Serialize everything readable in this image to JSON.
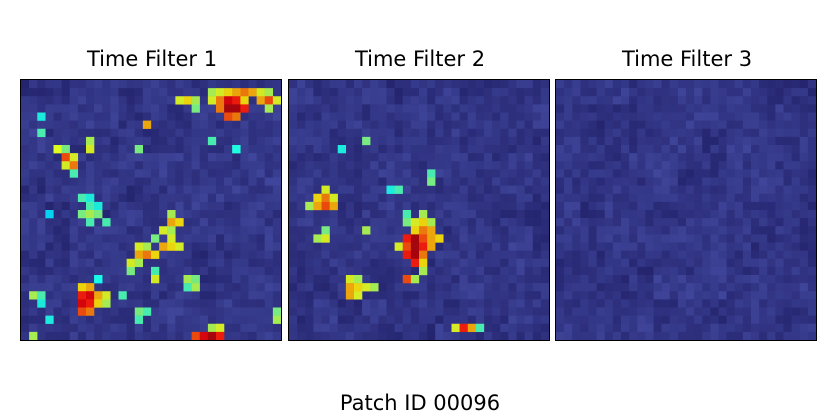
{
  "caption": "Patch ID 00096",
  "chart_data": {
    "type": "heatmap",
    "grid_size": [
      32,
      32
    ],
    "colormap": "jet overlay on satellite patch",
    "panels": [
      {
        "title": "Time Filter 1",
        "hotspots": [
          {
            "row": 1,
            "col": 23,
            "value": 0.55
          },
          {
            "row": 1,
            "col": 24,
            "value": 0.6
          },
          {
            "row": 1,
            "col": 25,
            "value": 0.65
          },
          {
            "row": 1,
            "col": 26,
            "value": 0.7
          },
          {
            "row": 1,
            "col": 27,
            "value": 0.75
          },
          {
            "row": 1,
            "col": 28,
            "value": 0.7
          },
          {
            "row": 1,
            "col": 29,
            "value": 0.6
          },
          {
            "row": 1,
            "col": 30,
            "value": 0.55
          },
          {
            "row": 2,
            "col": 19,
            "value": 0.6
          },
          {
            "row": 2,
            "col": 20,
            "value": 0.65
          },
          {
            "row": 2,
            "col": 21,
            "value": 0.55
          },
          {
            "row": 2,
            "col": 23,
            "value": 0.6
          },
          {
            "row": 2,
            "col": 24,
            "value": 0.75
          },
          {
            "row": 2,
            "col": 25,
            "value": 0.9
          },
          {
            "row": 2,
            "col": 26,
            "value": 0.85
          },
          {
            "row": 2,
            "col": 27,
            "value": 0.65
          },
          {
            "row": 2,
            "col": 29,
            "value": 0.7
          },
          {
            "row": 2,
            "col": 30,
            "value": 0.8
          },
          {
            "row": 2,
            "col": 31,
            "value": 0.6
          },
          {
            "row": 3,
            "col": 24,
            "value": 0.75
          },
          {
            "row": 3,
            "col": 25,
            "value": 0.95
          },
          {
            "row": 3,
            "col": 26,
            "value": 0.95
          },
          {
            "row": 3,
            "col": 27,
            "value": 0.85
          },
          {
            "row": 3,
            "col": 21,
            "value": 0.5
          },
          {
            "row": 3,
            "col": 30,
            "value": 0.55
          },
          {
            "row": 4,
            "col": 25,
            "value": 0.8
          },
          {
            "row": 4,
            "col": 26,
            "value": 0.75
          },
          {
            "row": 4,
            "col": 2,
            "value": 0.4
          },
          {
            "row": 5,
            "col": 15,
            "value": 0.7
          },
          {
            "row": 6,
            "col": 2,
            "value": 0.45
          },
          {
            "row": 7,
            "col": 8,
            "value": 0.55
          },
          {
            "row": 7,
            "col": 23,
            "value": 0.45
          },
          {
            "row": 8,
            "col": 4,
            "value": 0.55
          },
          {
            "row": 8,
            "col": 8,
            "value": 0.6
          },
          {
            "row": 8,
            "col": 14,
            "value": 0.5
          },
          {
            "row": 8,
            "col": 26,
            "value": 0.45
          },
          {
            "row": 9,
            "col": 4,
            "value": 0.6
          },
          {
            "row": 9,
            "col": 5,
            "value": 0.5
          },
          {
            "row": 9,
            "col": 26,
            "value": 0.4
          },
          {
            "row": 10,
            "col": 5,
            "value": 0.8
          },
          {
            "row": 10,
            "col": 6,
            "value": 0.6
          },
          {
            "row": 11,
            "col": 5,
            "value": 0.6
          },
          {
            "row": 11,
            "col": 6,
            "value": 0.75
          },
          {
            "row": 12,
            "col": 6,
            "value": 0.45
          },
          {
            "row": 15,
            "col": 7,
            "value": 0.45
          },
          {
            "row": 15,
            "col": 8,
            "value": 0.4
          },
          {
            "row": 16,
            "col": 8,
            "value": 0.45
          },
          {
            "row": 16,
            "col": 9,
            "value": 0.4
          },
          {
            "row": 17,
            "col": 3,
            "value": 0.35
          },
          {
            "row": 17,
            "col": 7,
            "value": 0.5
          },
          {
            "row": 17,
            "col": 8,
            "value": 0.55
          },
          {
            "row": 17,
            "col": 9,
            "value": 0.5
          },
          {
            "row": 17,
            "col": 18,
            "value": 0.55
          },
          {
            "row": 18,
            "col": 8,
            "value": 0.45
          },
          {
            "row": 18,
            "col": 10,
            "value": 0.45
          },
          {
            "row": 18,
            "col": 18,
            "value": 0.7
          },
          {
            "row": 18,
            "col": 19,
            "value": 0.65
          },
          {
            "row": 19,
            "col": 17,
            "value": 0.6
          },
          {
            "row": 19,
            "col": 18,
            "value": 0.55
          },
          {
            "row": 20,
            "col": 16,
            "value": 0.5
          },
          {
            "row": 20,
            "col": 18,
            "value": 0.6
          },
          {
            "row": 21,
            "col": 14,
            "value": 0.6
          },
          {
            "row": 21,
            "col": 15,
            "value": 0.55
          },
          {
            "row": 21,
            "col": 17,
            "value": 0.7
          },
          {
            "row": 21,
            "col": 18,
            "value": 0.65
          },
          {
            "row": 21,
            "col": 19,
            "value": 0.6
          },
          {
            "row": 22,
            "col": 14,
            "value": 0.7
          },
          {
            "row": 22,
            "col": 15,
            "value": 0.75
          },
          {
            "row": 22,
            "col": 16,
            "value": 0.65
          },
          {
            "row": 23,
            "col": 13,
            "value": 0.6
          },
          {
            "row": 23,
            "col": 14,
            "value": 0.55
          },
          {
            "row": 24,
            "col": 13,
            "value": 0.5
          },
          {
            "row": 24,
            "col": 16,
            "value": 0.45
          },
          {
            "row": 25,
            "col": 16,
            "value": 0.6
          },
          {
            "row": 25,
            "col": 9,
            "value": 0.35
          },
          {
            "row": 26,
            "col": 9,
            "value": 0.4
          },
          {
            "row": 26,
            "col": 20,
            "value": 0.55
          },
          {
            "row": 26,
            "col": 21,
            "value": 0.5
          },
          {
            "row": 27,
            "col": 7,
            "value": 0.65
          },
          {
            "row": 27,
            "col": 8,
            "value": 0.7
          },
          {
            "row": 27,
            "col": 20,
            "value": 0.45
          },
          {
            "row": 27,
            "col": 21,
            "value": 0.55
          },
          {
            "row": 28,
            "col": 1,
            "value": 0.55
          },
          {
            "row": 28,
            "col": 2,
            "value": 0.45
          },
          {
            "row": 28,
            "col": 7,
            "value": 0.85
          },
          {
            "row": 28,
            "col": 8,
            "value": 0.9
          },
          {
            "row": 28,
            "col": 9,
            "value": 0.7
          },
          {
            "row": 28,
            "col": 10,
            "value": 0.6
          },
          {
            "row": 28,
            "col": 12,
            "value": 0.45
          },
          {
            "row": 29,
            "col": 2,
            "value": 0.4
          },
          {
            "row": 29,
            "col": 7,
            "value": 0.9
          },
          {
            "row": 29,
            "col": 8,
            "value": 0.85
          },
          {
            "row": 29,
            "col": 9,
            "value": 0.65
          },
          {
            "row": 29,
            "col": 10,
            "value": 0.55
          },
          {
            "row": 30,
            "col": 7,
            "value": 0.8
          },
          {
            "row": 30,
            "col": 8,
            "value": 0.75
          },
          {
            "row": 30,
            "col": 14,
            "value": 0.5
          },
          {
            "row": 30,
            "col": 15,
            "value": 0.45
          },
          {
            "row": 30,
            "col": 31,
            "value": 0.5
          },
          {
            "row": 31,
            "col": 3,
            "value": 0.4
          },
          {
            "row": 31,
            "col": 14,
            "value": 0.45
          },
          {
            "row": 31,
            "col": 31,
            "value": 0.55
          },
          {
            "row": 32,
            "col": 23,
            "value": 0.55
          },
          {
            "row": 32,
            "col": 24,
            "value": 0.6
          },
          {
            "row": 33,
            "col": 1,
            "value": 0.55
          },
          {
            "row": 33,
            "col": 21,
            "value": 0.8
          },
          {
            "row": 33,
            "col": 22,
            "value": 0.9
          },
          {
            "row": 33,
            "col": 23,
            "value": 0.95
          },
          {
            "row": 33,
            "col": 24,
            "value": 0.85
          }
        ]
      },
      {
        "title": "Time Filter 2",
        "hotspots": [
          {
            "row": 7,
            "col": 9,
            "value": 0.5
          },
          {
            "row": 9,
            "col": 6,
            "value": 0.4
          },
          {
            "row": 12,
            "col": 17,
            "value": 0.45
          },
          {
            "row": 13,
            "col": 17,
            "value": 0.5
          },
          {
            "row": 14,
            "col": 4,
            "value": 0.6
          },
          {
            "row": 14,
            "col": 12,
            "value": 0.4
          },
          {
            "row": 14,
            "col": 13,
            "value": 0.45
          },
          {
            "row": 15,
            "col": 3,
            "value": 0.65
          },
          {
            "row": 15,
            "col": 4,
            "value": 0.75
          },
          {
            "row": 15,
            "col": 5,
            "value": 0.6
          },
          {
            "row": 16,
            "col": 2,
            "value": 0.55
          },
          {
            "row": 16,
            "col": 3,
            "value": 0.7
          },
          {
            "row": 16,
            "col": 4,
            "value": 0.8
          },
          {
            "row": 16,
            "col": 5,
            "value": 0.7
          },
          {
            "row": 17,
            "col": 14,
            "value": 0.45
          },
          {
            "row": 17,
            "col": 16,
            "value": 0.55
          },
          {
            "row": 18,
            "col": 14,
            "value": 0.5
          },
          {
            "row": 18,
            "col": 15,
            "value": 0.6
          },
          {
            "row": 18,
            "col": 16,
            "value": 0.65
          },
          {
            "row": 18,
            "col": 17,
            "value": 0.55
          },
          {
            "row": 19,
            "col": 4,
            "value": 0.5
          },
          {
            "row": 19,
            "col": 9,
            "value": 0.55
          },
          {
            "row": 19,
            "col": 15,
            "value": 0.65
          },
          {
            "row": 19,
            "col": 16,
            "value": 0.75
          },
          {
            "row": 19,
            "col": 17,
            "value": 0.7
          },
          {
            "row": 20,
            "col": 3,
            "value": 0.55
          },
          {
            "row": 20,
            "col": 4,
            "value": 0.6
          },
          {
            "row": 20,
            "col": 14,
            "value": 0.85
          },
          {
            "row": 20,
            "col": 15,
            "value": 0.95
          },
          {
            "row": 20,
            "col": 16,
            "value": 0.8
          },
          {
            "row": 20,
            "col": 17,
            "value": 0.7
          },
          {
            "row": 20,
            "col": 18,
            "value": 0.65
          },
          {
            "row": 21,
            "col": 13,
            "value": 0.6
          },
          {
            "row": 21,
            "col": 14,
            "value": 0.8
          },
          {
            "row": 21,
            "col": 15,
            "value": 0.95
          },
          {
            "row": 21,
            "col": 16,
            "value": 0.85
          },
          {
            "row": 21,
            "col": 17,
            "value": 0.7
          },
          {
            "row": 22,
            "col": 14,
            "value": 0.85
          },
          {
            "row": 22,
            "col": 15,
            "value": 0.95
          },
          {
            "row": 22,
            "col": 16,
            "value": 0.75
          },
          {
            "row": 23,
            "col": 15,
            "value": 0.85
          },
          {
            "row": 23,
            "col": 16,
            "value": 0.65
          },
          {
            "row": 24,
            "col": 16,
            "value": 0.55
          },
          {
            "row": 25,
            "col": 14,
            "value": 0.8
          },
          {
            "row": 25,
            "col": 15,
            "value": 0.55
          },
          {
            "row": 26,
            "col": 7,
            "value": 0.6
          },
          {
            "row": 26,
            "col": 8,
            "value": 0.55
          },
          {
            "row": 27,
            "col": 7,
            "value": 0.7
          },
          {
            "row": 27,
            "col": 8,
            "value": 0.65
          },
          {
            "row": 27,
            "col": 9,
            "value": 0.6
          },
          {
            "row": 27,
            "col": 10,
            "value": 0.55
          },
          {
            "row": 28,
            "col": 7,
            "value": 0.7
          },
          {
            "row": 28,
            "col": 8,
            "value": 0.6
          },
          {
            "row": 32,
            "col": 20,
            "value": 0.6
          },
          {
            "row": 32,
            "col": 21,
            "value": 0.85
          },
          {
            "row": 32,
            "col": 22,
            "value": 0.7
          },
          {
            "row": 32,
            "col": 23,
            "value": 0.45
          }
        ]
      },
      {
        "title": "Time Filter 3",
        "hotspots": []
      }
    ]
  }
}
